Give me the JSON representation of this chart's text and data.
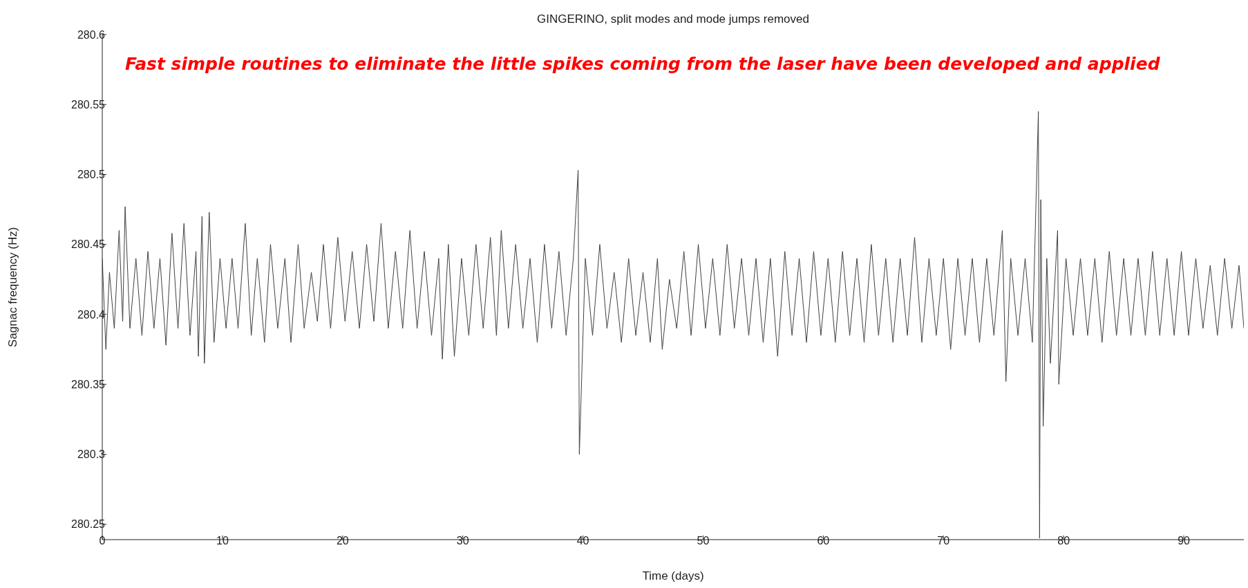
{
  "chart_data": {
    "type": "line",
    "title": "GINGERINO, split modes and mode jumps removed",
    "xlabel": "Time (days)",
    "ylabel": "Sagnac frequency (Hz)",
    "annotations": [
      "Fast simple routines to eliminate the little spikes coming from the laser have been developed and applied"
    ],
    "xlim": [
      0,
      95
    ],
    "xticks": [
      0,
      10,
      20,
      30,
      40,
      50,
      60,
      70,
      80,
      90
    ],
    "ylim": [
      280.239,
      280.6
    ],
    "yticks": [
      280.25,
      280.3,
      280.35,
      280.4,
      280.45,
      280.5,
      280.55,
      280.6
    ],
    "grid": false,
    "legend": false,
    "marker": "none",
    "line_style": "solid",
    "series": [
      {
        "color": "#404040",
        "x": [
          0,
          0.3,
          0.6,
          1,
          1.4,
          1.7,
          1.9,
          2.3,
          2.8,
          3.3,
          3.8,
          4.3,
          4.8,
          5.3,
          5.8,
          6.3,
          6.8,
          7.3,
          7.8,
          8.0,
          8.3,
          8.5,
          8.9,
          9.3,
          9.8,
          10.3,
          10.8,
          11.3,
          11.9,
          12.4,
          12.9,
          13.5,
          14.0,
          14.6,
          15.2,
          15.7,
          16.3,
          16.8,
          17.4,
          17.9,
          18.4,
          19.0,
          19.6,
          20.2,
          20.8,
          21.4,
          22.0,
          22.6,
          23.2,
          23.8,
          24.4,
          25.0,
          25.6,
          26.2,
          26.8,
          27.4,
          28.0,
          28.3,
          28.8,
          29.3,
          29.9,
          30.5,
          31.1,
          31.7,
          32.3,
          32.8,
          33.2,
          33.8,
          34.4,
          35.0,
          35.6,
          36.2,
          36.8,
          37.4,
          38.0,
          38.6,
          39.2,
          39.6,
          39.7,
          40.2,
          40.8,
          41.4,
          42.0,
          42.6,
          43.2,
          43.8,
          44.4,
          45.0,
          45.6,
          46.2,
          46.6,
          47.2,
          47.8,
          48.4,
          49.0,
          49.6,
          50.2,
          50.8,
          51.4,
          52.0,
          52.6,
          53.2,
          53.8,
          54.4,
          55.0,
          55.6,
          56.2,
          56.8,
          57.4,
          58.0,
          58.6,
          59.2,
          59.8,
          60.4,
          61.0,
          61.6,
          62.2,
          62.8,
          63.4,
          64.0,
          64.6,
          65.2,
          65.8,
          66.4,
          67.0,
          67.6,
          68.2,
          68.8,
          69.4,
          70.0,
          70.6,
          71.2,
          71.8,
          72.4,
          73.0,
          73.6,
          74.2,
          74.9,
          75.2,
          75.6,
          76.2,
          76.8,
          77.4,
          77.9,
          78.0,
          78.1,
          78.3,
          78.6,
          78.9,
          79.5,
          79.6,
          80.2,
          80.8,
          81.4,
          82.0,
          82.6,
          83.2,
          83.8,
          84.4,
          85.0,
          85.6,
          86.2,
          86.8,
          87.4,
          88.0,
          88.6,
          89.2,
          89.8,
          90.4,
          91.0,
          91.6,
          92.2,
          92.8,
          93.4,
          94.0,
          94.6,
          95.0
        ],
        "values": [
          280.44,
          280.375,
          280.43,
          280.39,
          280.46,
          280.395,
          280.477,
          280.39,
          280.44,
          280.385,
          280.445,
          280.39,
          280.44,
          280.378,
          280.458,
          280.39,
          280.465,
          280.385,
          280.445,
          280.37,
          280.47,
          280.365,
          280.473,
          280.38,
          280.44,
          280.39,
          280.44,
          280.39,
          280.465,
          280.385,
          280.44,
          280.38,
          280.45,
          280.39,
          280.44,
          280.38,
          280.45,
          280.39,
          280.43,
          280.395,
          280.45,
          280.39,
          280.455,
          280.395,
          280.445,
          280.39,
          280.45,
          280.395,
          280.465,
          280.39,
          280.445,
          280.39,
          280.46,
          280.39,
          280.445,
          280.385,
          280.44,
          280.368,
          280.45,
          280.37,
          280.44,
          280.385,
          280.45,
          280.39,
          280.455,
          280.385,
          280.46,
          280.39,
          280.45,
          280.39,
          280.44,
          280.38,
          280.45,
          280.39,
          280.445,
          280.385,
          280.44,
          280.503,
          280.3,
          280.44,
          280.385,
          280.45,
          280.39,
          280.43,
          280.38,
          280.44,
          280.385,
          280.43,
          280.38,
          280.44,
          280.375,
          280.425,
          280.39,
          280.445,
          280.385,
          280.45,
          280.39,
          280.44,
          280.385,
          280.45,
          280.39,
          280.44,
          280.385,
          280.44,
          280.38,
          280.44,
          280.37,
          280.445,
          280.385,
          280.44,
          280.38,
          280.445,
          280.385,
          280.44,
          280.38,
          280.445,
          280.385,
          280.44,
          280.38,
          280.45,
          280.385,
          280.44,
          280.38,
          280.44,
          280.385,
          280.455,
          280.38,
          280.44,
          280.385,
          280.44,
          280.375,
          280.44,
          280.385,
          280.44,
          280.38,
          280.44,
          280.385,
          280.46,
          280.352,
          280.44,
          280.385,
          280.44,
          280.38,
          280.545,
          280.24,
          280.482,
          280.32,
          280.44,
          280.365,
          280.46,
          280.35,
          280.44,
          280.385,
          280.44,
          280.385,
          280.44,
          280.38,
          280.445,
          280.385,
          280.44,
          280.385,
          280.44,
          280.385,
          280.445,
          280.385,
          280.44,
          280.385,
          280.445,
          280.385,
          280.44,
          280.39,
          280.435,
          280.385,
          280.44,
          280.39,
          280.435,
          280.39
        ]
      }
    ]
  }
}
